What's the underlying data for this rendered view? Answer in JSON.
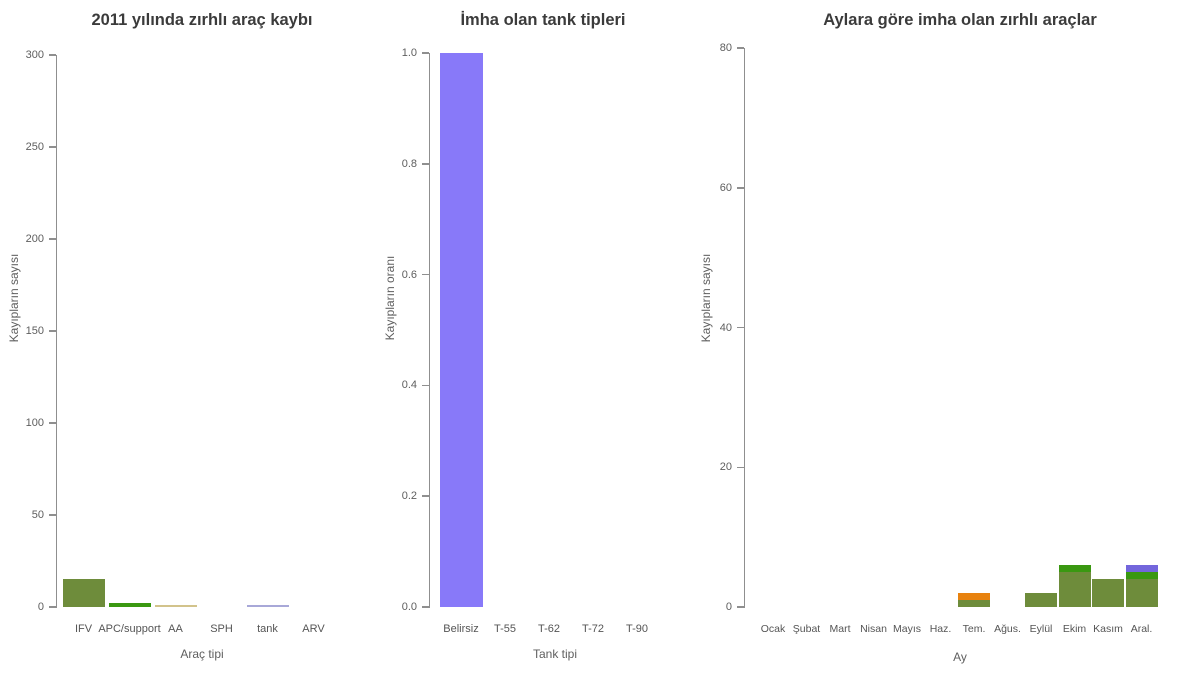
{
  "page": {
    "background": "#ffffff"
  },
  "colors": {
    "axis": "#8f8f8f",
    "tick_text": "#5e5e5e",
    "title_text": "#3b3b3b",
    "olive_green": "#6e8c3b",
    "bright_green": "#3a9811",
    "orange": "#e8820e",
    "purple": "#8879f9",
    "purple_dark": "#7366dc",
    "tan": "#d2c38b",
    "lavender": "#a8a8d8"
  },
  "chart_data": [
    {
      "type": "bar",
      "title": "2011 yılında zırhlı araç kaybı",
      "xlabel": "Araç tipi",
      "ylabel": "Kayıpların sayısı",
      "ylim": [
        0,
        300
      ],
      "yticks": [
        0,
        50,
        100,
        150,
        200,
        250,
        300
      ],
      "ytick_labels": [
        "0",
        "50",
        "100",
        "150",
        "200",
        "250",
        "300"
      ],
      "grid": false,
      "legend": false,
      "categories": [
        "IFV",
        "APC/support",
        "AA",
        "SPH",
        "tank",
        "ARV"
      ],
      "values": [
        15,
        2,
        1,
        0,
        1,
        0
      ],
      "bar_colors": [
        "#6e8c3b",
        "#3a9811",
        "#d2c38b",
        "#e8820e",
        "#a8a8d8",
        "#8879f9"
      ]
    },
    {
      "type": "bar",
      "title": "İmha olan tank tipleri",
      "xlabel": "Tank tipi",
      "ylabel": "Kayıpların oranı",
      "ylim": [
        0,
        1.0
      ],
      "yticks": [
        0.0,
        0.2,
        0.4,
        0.6,
        0.8,
        1.0
      ],
      "ytick_labels": [
        "0.0",
        "0.2",
        "0.4",
        "0.6",
        "0.8",
        "1.0"
      ],
      "grid": false,
      "legend": false,
      "categories": [
        "Belirsiz",
        "T-55",
        "T-62",
        "T-72",
        "T-90"
      ],
      "values": [
        1.0,
        0,
        0,
        0,
        0
      ],
      "bar_colors": [
        "#8879f9",
        "#8879f9",
        "#8879f9",
        "#8879f9",
        "#8879f9"
      ]
    },
    {
      "type": "stacked-bar",
      "title": "Aylara göre imha olan zırhlı araçlar",
      "xlabel": "Ay",
      "ylabel": "Kayıpların sayısı",
      "ylim": [
        0,
        80
      ],
      "yticks": [
        0,
        20,
        40,
        60,
        80
      ],
      "ytick_labels": [
        "0",
        "20",
        "40",
        "60",
        "80"
      ],
      "grid": false,
      "legend": false,
      "categories": [
        "Ocak",
        "Şubat",
        "Mart",
        "Nisan",
        "Mayıs",
        "Haz.",
        "Tem.",
        "Ağus.",
        "Eylül",
        "Ekim",
        "Kasım",
        "Aral."
      ],
      "series": [
        {
          "name": "olive-green-segment",
          "color": "#6e8c3b",
          "values": [
            0,
            0,
            0,
            0,
            0,
            0,
            1,
            0,
            2,
            5,
            4,
            4
          ]
        },
        {
          "name": "bright-green-segment",
          "color": "#3a9811",
          "values": [
            0,
            0,
            0,
            0,
            0,
            0,
            0,
            0,
            0,
            1,
            0,
            1
          ]
        },
        {
          "name": "orange-segment",
          "color": "#e8820e",
          "values": [
            0,
            0,
            0,
            0,
            0,
            0,
            1,
            0,
            0,
            0,
            0,
            0
          ]
        },
        {
          "name": "purple-segment",
          "color": "#7366dc",
          "values": [
            0,
            0,
            0,
            0,
            0,
            0,
            0,
            0,
            0,
            0,
            0,
            1
          ]
        }
      ]
    }
  ]
}
